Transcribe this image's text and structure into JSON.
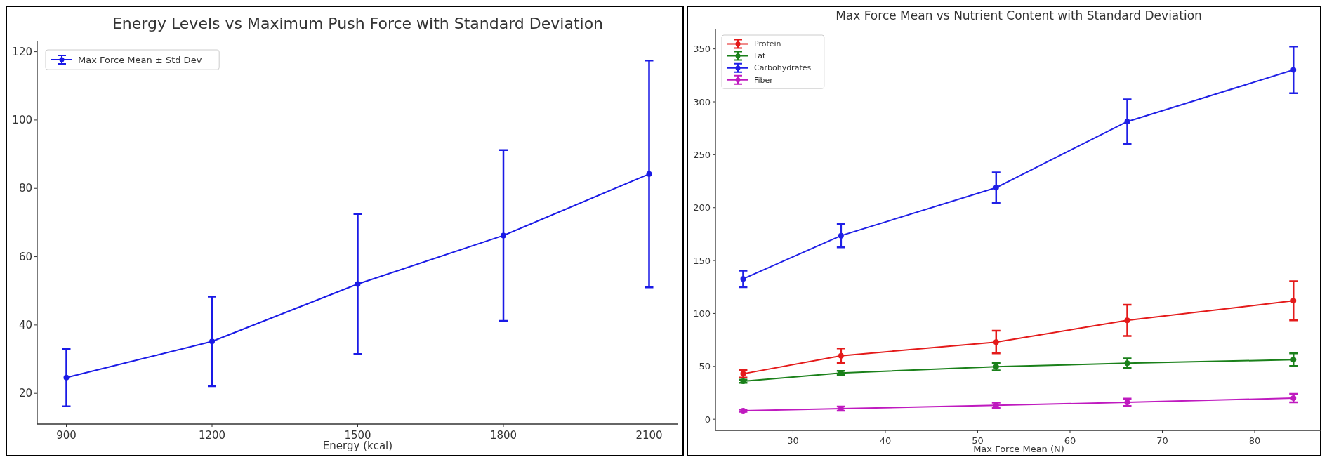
{
  "chart_data": [
    {
      "type": "line",
      "title": "Energy Levels vs Maximum Push Force with Standard Deviation",
      "xlabel": "Energy (kcal)",
      "x": [
        900,
        1200,
        1500,
        1800,
        2100
      ],
      "xlim": [
        840,
        2160
      ],
      "xticks": [
        900,
        1200,
        1500,
        1800,
        2100
      ],
      "ylim": [
        11,
        123
      ],
      "yticks": [
        20,
        40,
        60,
        80,
        100,
        120
      ],
      "marker": "circle",
      "line_style": "solid",
      "grid": false,
      "legend": "top left",
      "series": [
        {
          "name": "Max Force Mean ± Std Dev",
          "color": "#1a1ae6",
          "values": [
            24.6,
            35.2,
            52.0,
            66.2,
            84.2
          ],
          "errors": [
            8.4,
            13.1,
            20.5,
            25.0,
            33.2
          ]
        }
      ]
    },
    {
      "type": "line",
      "title": "Max Force Mean vs Nutrient Content with Standard Deviation",
      "xlabel": "Max Force Mean (N)",
      "x": [
        24.6,
        35.2,
        52.0,
        66.2,
        84.2
      ],
      "xlim": [
        21.6,
        87.3
      ],
      "xticks": [
        30,
        40,
        50,
        60,
        70,
        80
      ],
      "ylim": [
        -10.5,
        369
      ],
      "yticks": [
        0,
        50,
        100,
        150,
        200,
        250,
        300,
        350
      ],
      "marker": "circle",
      "line_style": "solid",
      "grid": false,
      "legend": "top left",
      "series": [
        {
          "name": "Protein",
          "color": "#e41a1a",
          "values": [
            43,
            60,
            73,
            93.5,
            112
          ],
          "errors": [
            3.5,
            7,
            10.7,
            14.8,
            18.5
          ]
        },
        {
          "name": "Fat",
          "color": "#1a801a",
          "values": [
            36,
            43.8,
            49.7,
            53,
            56.3
          ],
          "errors": [
            1.5,
            2,
            3.5,
            4.5,
            6
          ]
        },
        {
          "name": "Carbohydrates",
          "color": "#2020e6",
          "values": [
            132.7,
            173.5,
            218.9,
            281.3,
            330.2
          ],
          "errors": [
            7.8,
            11,
            14.5,
            21,
            22
          ]
        },
        {
          "name": "Fiber",
          "color": "#bf1abf",
          "values": [
            8.1,
            10,
            13.2,
            16,
            20
          ],
          "errors": [
            1,
            2,
            2.5,
            3.5,
            4
          ]
        }
      ]
    }
  ]
}
